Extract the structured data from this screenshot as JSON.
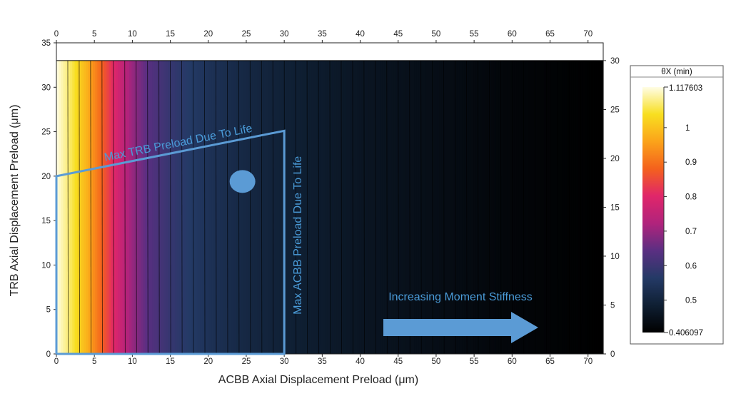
{
  "chart_data": {
    "type": "heatmap",
    "x_axis": {
      "label": "ACBB Axial Displacement Preload (μm)",
      "range": [
        0,
        72
      ],
      "ticks": [
        0,
        5,
        10,
        15,
        20,
        25,
        30,
        35,
        40,
        45,
        50,
        55,
        60,
        65,
        70
      ]
    },
    "y_axis_left": {
      "label": "TRB Axial Displacement Preload (μm)",
      "range": [
        0,
        35
      ],
      "ticks": [
        0,
        5,
        10,
        15,
        20,
        25,
        30,
        35
      ]
    },
    "y_axis_right": {
      "range": [
        0,
        30
      ],
      "ticks": [
        0,
        5,
        10,
        15,
        20,
        25,
        30
      ]
    },
    "data_extent": {
      "x": [
        0,
        72
      ],
      "y": [
        0,
        33
      ]
    },
    "colorbar": {
      "title": "θX (min)",
      "min": 0.406097,
      "max": 1.117603,
      "min_label": "0.406097",
      "max_label": "1.117603",
      "ticks": [
        "1",
        "0.9",
        "0.8",
        "0.7",
        "0.6",
        "0.5"
      ],
      "tick_values": [
        1.0,
        0.9,
        0.8,
        0.7,
        0.6,
        0.5
      ],
      "colormap": [
        "#000000",
        "#0f1f33",
        "#243a66",
        "#5a2f82",
        "#b0237c",
        "#e0266a",
        "#f4611d",
        "#fba31a",
        "#f8df20",
        "#fffde6"
      ]
    },
    "thetaX_vs_acbb": {
      "x": [
        0,
        2,
        4,
        6,
        8,
        10,
        12,
        15,
        18,
        20,
        25,
        30,
        40,
        50,
        60,
        72
      ],
      "values": [
        1.117603,
        1.06,
        0.98,
        0.88,
        0.78,
        0.7,
        0.64,
        0.59,
        0.56,
        0.54,
        0.51,
        0.49,
        0.46,
        0.44,
        0.42,
        0.406097
      ]
    },
    "contour_spacing_x": 1.5,
    "feasible_region": {
      "points": [
        [
          0,
          0
        ],
        [
          0,
          20
        ],
        [
          30,
          25.1
        ],
        [
          30,
          0
        ]
      ],
      "color": "#5b9bd5"
    },
    "marker": {
      "x": 24.5,
      "y": 19.4,
      "color": "#5b9bd5"
    },
    "annotations": {
      "max_trb": "Max TRB Preload Due To Life",
      "max_acbb": "Max ACBB Preload Due To Life",
      "increasing": "Increasing Moment Stiffness"
    },
    "arrow_direction": "right"
  }
}
